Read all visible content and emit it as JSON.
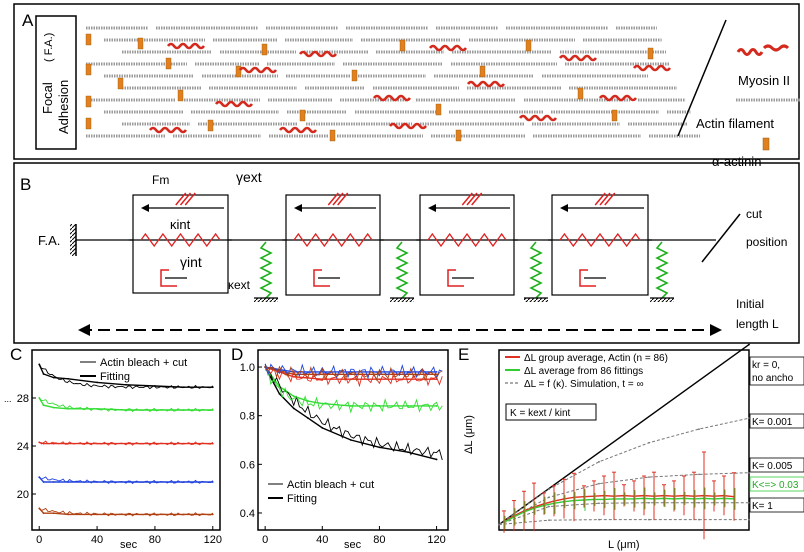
{
  "panel_a": {
    "label": "A",
    "focal_adhesion_line1": "Focal",
    "focal_adhesion_line2": "Adhesion",
    "focal_adhesion_abbrev": "( F.A.)",
    "legend_myosin": "Myosin II",
    "legend_actin": "Actin filament",
    "legend_actinin": "α-actinin",
    "colors": {
      "myosin": "#d42a1e",
      "actin": "#9a9a9a",
      "actinin": "#e0801e"
    }
  },
  "panel_b": {
    "label": "B",
    "fa_label": "F.A.",
    "fm_label": "Fm",
    "gamma_ext_label": "γext",
    "kappa_int_label": "κint",
    "gamma_int_label": "γint",
    "kappa_ext_label": "κext",
    "cut_label_line1": "cut",
    "cut_label_line2": "position",
    "length_label_line1": "Initial",
    "length_label_line2": "length L",
    "colors": {
      "spring_int": "#e02020",
      "spring_ext": "#20b020",
      "dashpot": "#e02020"
    }
  },
  "panel_c": {
    "label": "C",
    "legend_line1": "Actin bleach + cut",
    "legend_line2": "Fitting",
    "xlabel": "sec",
    "ylabel": "...",
    "y_ticks": [
      "20",
      "24",
      "28"
    ],
    "x_ticks": [
      "0",
      "40",
      "80",
      "120"
    ]
  },
  "panel_d": {
    "label": "D",
    "legend_line1": "Actin bleach + cut",
    "legend_line2": "Fitting",
    "xlabel": "sec",
    "y_ticks": [
      "0.4",
      "0.6",
      "0.8",
      "1.0"
    ],
    "x_ticks": [
      "0",
      "40",
      "80",
      "120"
    ]
  },
  "panel_e": {
    "label": "E",
    "legend_line1": "ΔL group average, Actin (n = 86)",
    "legend_line2": "ΔL average from 86 fittings",
    "legend_line3": "ΔL = f (κ). Simulation, t = ∞",
    "kappa_def": "K = kext / kint",
    "ann_kr0_line1": "kr = 0,",
    "ann_kr0_line2": "no ancho",
    "ann_k001": "K= 0.001",
    "ann_k005": "K= 0.005",
    "ann_k03": "K<=> 0.03",
    "ann_k1": "K= 1",
    "xlabel": "L (μm)",
    "ylabel": "ΔL (μm)",
    "y_ticks": [
      "0",
      "5",
      "10",
      "15",
      "20",
      "25",
      "30"
    ],
    "x_ticks": [
      "0",
      "10",
      "20",
      "30",
      "40",
      "50"
    ]
  },
  "chart_data": [
    {
      "type": "line",
      "panel": "C",
      "xlabel": "sec",
      "x_ticks": [
        0,
        40,
        80,
        120
      ],
      "y_ticks": [
        20,
        24,
        28
      ],
      "xlim": [
        -5,
        125
      ],
      "ylim": [
        17,
        32
      ],
      "series": [
        {
          "color": "#000000",
          "x": [
            0,
            3,
            10,
            20,
            40,
            60,
            80,
            100,
            120
          ],
          "y": [
            30.8,
            30.0,
            29.7,
            29.6,
            29.3,
            29.1,
            29.0,
            28.9,
            28.9
          ]
        },
        {
          "color": "#33dd33",
          "x": [
            0,
            3,
            10,
            20,
            40,
            60,
            80,
            100,
            120
          ],
          "y": [
            28.0,
            27.4,
            27.2,
            27.1,
            27.1,
            27.0,
            27.0,
            27.0,
            27.0
          ]
        },
        {
          "color": "#e03020",
          "x": [
            0,
            3,
            10,
            20,
            40,
            60,
            80,
            100,
            120
          ],
          "y": [
            24.3,
            24.2,
            24.2,
            24.2,
            24.2,
            24.2,
            24.2,
            24.2,
            24.2
          ]
        },
        {
          "color": "#2244dd",
          "x": [
            0,
            3,
            10,
            20,
            40,
            60,
            80,
            100,
            120
          ],
          "y": [
            21.4,
            21.0,
            21.0,
            21.0,
            21.0,
            21.0,
            21.0,
            21.0,
            21.0
          ]
        },
        {
          "color": "#b04010",
          "x": [
            0,
            3,
            10,
            20,
            40,
            60,
            80,
            100,
            120
          ],
          "y": [
            18.8,
            18.4,
            18.4,
            18.3,
            18.3,
            18.3,
            18.3,
            18.3,
            18.3
          ]
        }
      ]
    },
    {
      "type": "line",
      "panel": "D",
      "xlabel": "sec",
      "x_ticks": [
        0,
        40,
        80,
        120
      ],
      "y_ticks": [
        0.4,
        0.6,
        0.8,
        1.0
      ],
      "xlim": [
        -5,
        128
      ],
      "ylim": [
        0.33,
        1.07
      ],
      "series": [
        {
          "color": "#000000",
          "x": [
            0,
            10,
            20,
            30,
            40,
            60,
            80,
            100,
            120
          ],
          "y": [
            1.0,
            0.89,
            0.83,
            0.79,
            0.75,
            0.7,
            0.67,
            0.65,
            0.62
          ]
        },
        {
          "color": "#33dd33",
          "x": [
            0,
            10,
            20,
            30,
            40,
            60,
            80,
            100,
            120
          ],
          "y": [
            1.0,
            0.92,
            0.88,
            0.86,
            0.85,
            0.84,
            0.84,
            0.84,
            0.84
          ]
        },
        {
          "color": "#e03020",
          "x": [
            0,
            20,
            40,
            60,
            80,
            100,
            120
          ],
          "y": [
            1.0,
            0.96,
            0.95,
            0.95,
            0.95,
            0.95,
            0.95
          ]
        },
        {
          "color": "#2244dd",
          "x": [
            0,
            20,
            40,
            60,
            80,
            100,
            120
          ],
          "y": [
            1.0,
            0.98,
            0.98,
            0.98,
            0.98,
            0.98,
            0.98
          ]
        },
        {
          "color": "#b04010",
          "x": [
            0,
            20,
            40,
            60,
            80,
            100,
            120
          ],
          "y": [
            1.0,
            0.97,
            0.97,
            0.97,
            0.97,
            0.97,
            0.97
          ]
        }
      ]
    },
    {
      "type": "line",
      "panel": "E",
      "xlabel": "L (μm)",
      "ylabel": "ΔL (μm)",
      "xlim": [
        0,
        50
      ],
      "ylim": [
        -1,
        32
      ],
      "series": [
        {
          "color": "#000000",
          "x": [
            0,
            50
          ],
          "y": [
            0,
            33
          ]
        },
        {
          "color": "#777777",
          "dashed": true,
          "x": [
            0,
            10,
            20,
            30,
            40,
            50
          ],
          "y": [
            0,
            6.5,
            11.5,
            15.0,
            17.5,
            19.5
          ]
        },
        {
          "color": "#777777",
          "dashed": true,
          "x": [
            0,
            10,
            20,
            30,
            40,
            50
          ],
          "y": [
            0,
            5.0,
            7.5,
            8.7,
            9.2,
            9.5
          ]
        },
        {
          "color": "#777777",
          "dashed": true,
          "x": [
            0,
            10,
            20,
            30,
            40,
            50
          ],
          "y": [
            0,
            3.3,
            3.9,
            4.0,
            4.0,
            4.0
          ]
        },
        {
          "color": "#777777",
          "dashed": true,
          "x": [
            0,
            10,
            20,
            30,
            40,
            50
          ],
          "y": [
            0,
            0.8,
            0.9,
            0.9,
            0.9,
            0.9
          ]
        },
        {
          "color": "#e03020",
          "x": [
            1,
            3,
            5,
            7,
            9,
            11,
            13,
            15,
            17,
            19,
            21,
            23,
            25,
            27,
            29,
            31,
            33,
            35,
            37,
            39,
            41,
            43,
            45,
            47
          ],
          "y": [
            0.5,
            1.6,
            2.5,
            3.2,
            3.8,
            4.3,
            4.7,
            5.0,
            5.1,
            5.2,
            5.3,
            5.2,
            5.3,
            5.2,
            5.3,
            5.2,
            5.3,
            5.2,
            5.3,
            5.2,
            5.3,
            5.2,
            5.3,
            5.1
          ]
        },
        {
          "color": "#33cc33",
          "x": [
            1,
            3,
            5,
            7,
            9,
            11,
            13,
            15,
            17,
            19,
            21,
            23,
            25,
            27,
            29,
            31,
            33,
            35,
            37,
            39,
            41,
            43,
            45,
            47
          ],
          "y": [
            0.4,
            1.4,
            2.3,
            3.0,
            3.5,
            3.9,
            4.2,
            4.4,
            4.5,
            4.6,
            4.6,
            4.7,
            4.7,
            4.7,
            4.8,
            4.7,
            4.8,
            4.7,
            4.8,
            4.7,
            4.8,
            4.7,
            4.8,
            4.7
          ]
        }
      ]
    }
  ]
}
